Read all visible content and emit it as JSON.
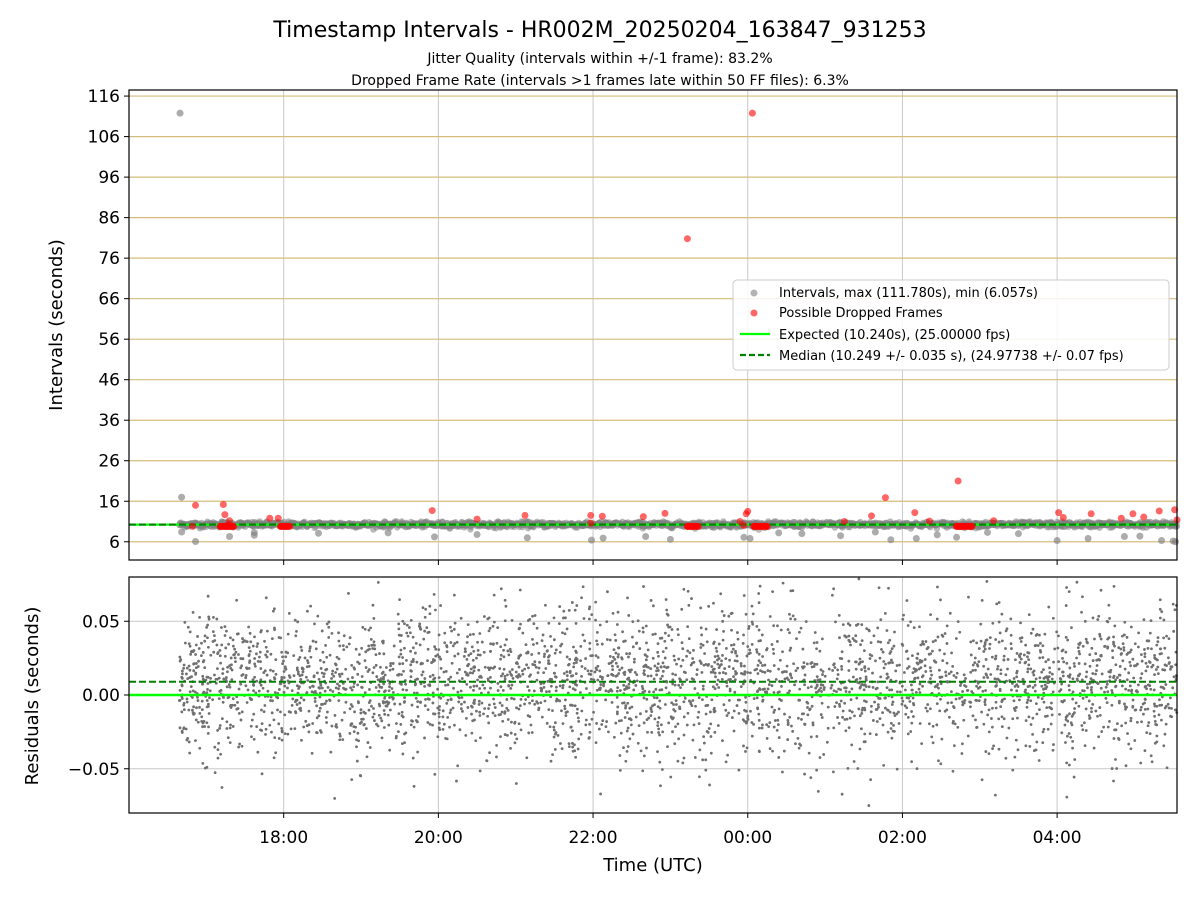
{
  "title": "Timestamp Intervals - HR002M_20250204_163847_931253",
  "subtitle_1": "Jitter Quality (intervals within +/-1 frame): 83.2%",
  "subtitle_2": "Dropped Frame Rate (intervals >1 frames late within 50 FF files): 6.3%",
  "colors": {
    "intervals": "#808080",
    "dropped": "#ff0000",
    "expected": "#00ff00",
    "median": "#008000",
    "hgrid_top": "#d4bd7a",
    "vgrid": "#c8c8c8"
  },
  "chart_data": [
    {
      "type": "scatter",
      "ylabel": "Intervals (seconds)",
      "ylim": [
        1.5,
        117.5
      ],
      "xlim_hours": [
        16.0,
        29.55
      ],
      "yticks": [
        6,
        16,
        26,
        36,
        46,
        56,
        66,
        76,
        86,
        96,
        106,
        116
      ],
      "horizontal_grid": true,
      "vertical_grid": true,
      "legend_position": "center-right",
      "legend": {
        "intervals": "Intervals, max (111.780s), min (6.057s)",
        "dropped": "Possible Dropped Frames",
        "expected": "Expected (10.240s), (25.00000 fps)",
        "median": "Median (10.249 +/- 0.035 s), (24.97738 +/- 0.07 fps)"
      },
      "expected_y": 10.24,
      "median_y": 10.249,
      "intervals_band": {
        "t_start": 16.65,
        "t_end": 29.55,
        "y_min": 9.0,
        "y_max": 11.0
      },
      "intervals_outliers": [
        [
          16.66,
          111.78
        ],
        [
          16.68,
          17.0
        ],
        [
          16.68,
          8.4
        ],
        [
          16.86,
          6.06
        ],
        [
          17.2,
          10.9
        ],
        [
          17.3,
          7.3
        ],
        [
          17.62,
          7.6
        ],
        [
          17.62,
          8.3
        ],
        [
          18.45,
          8.1
        ],
        [
          19.35,
          8.2
        ],
        [
          19.95,
          7.2
        ],
        [
          20.5,
          7.8
        ],
        [
          21.15,
          7.0
        ],
        [
          21.98,
          6.4
        ],
        [
          22.13,
          6.9
        ],
        [
          22.68,
          7.3
        ],
        [
          23.0,
          6.6
        ],
        [
          23.95,
          7.1
        ],
        [
          24.03,
          6.8
        ],
        [
          24.4,
          8.2
        ],
        [
          24.7,
          8.0
        ],
        [
          25.2,
          7.5
        ],
        [
          25.65,
          8.4
        ],
        [
          25.85,
          6.5
        ],
        [
          26.18,
          6.8
        ],
        [
          26.45,
          7.7
        ],
        [
          26.7,
          7.1
        ],
        [
          27.1,
          8.3
        ],
        [
          27.5,
          8.0
        ],
        [
          28.0,
          6.3
        ],
        [
          28.4,
          6.8
        ],
        [
          28.87,
          7.3
        ],
        [
          29.07,
          7.4
        ],
        [
          29.35,
          6.3
        ],
        [
          29.53,
          6.0
        ],
        [
          29.5,
          6.2
        ]
      ],
      "dropped_points": [
        [
          16.82,
          9.8
        ],
        [
          16.86,
          15.0
        ],
        [
          17.22,
          15.2
        ],
        [
          17.24,
          12.7
        ],
        [
          17.3,
          11.2
        ],
        [
          17.28,
          10.2
        ],
        [
          17.18,
          9.8
        ],
        [
          17.35,
          9.8
        ],
        [
          17.82,
          11.8
        ],
        [
          17.93,
          11.8
        ],
        [
          17.96,
          9.8
        ],
        [
          18.08,
          9.8
        ],
        [
          19.92,
          13.7
        ],
        [
          20.5,
          11.6
        ],
        [
          21.12,
          12.5
        ],
        [
          21.97,
          12.5
        ],
        [
          21.97,
          10.6
        ],
        [
          22.12,
          12.3
        ],
        [
          22.65,
          12.2
        ],
        [
          22.93,
          13.0
        ],
        [
          23.22,
          80.8
        ],
        [
          23.22,
          9.8
        ],
        [
          23.36,
          9.8
        ],
        [
          23.9,
          11.0
        ],
        [
          23.95,
          10.0
        ],
        [
          23.98,
          12.9
        ],
        [
          24.0,
          13.5
        ],
        [
          24.06,
          111.78
        ],
        [
          24.08,
          9.8
        ],
        [
          24.25,
          9.8
        ],
        [
          25.25,
          11.0
        ],
        [
          25.6,
          12.4
        ],
        [
          25.78,
          16.9
        ],
        [
          26.16,
          13.2
        ],
        [
          26.35,
          11.1
        ],
        [
          26.72,
          21.0
        ],
        [
          26.7,
          9.8
        ],
        [
          26.9,
          9.8
        ],
        [
          27.18,
          11.2
        ],
        [
          28.02,
          13.2
        ],
        [
          28.08,
          12.0
        ],
        [
          28.44,
          12.9
        ],
        [
          28.83,
          11.8
        ],
        [
          28.98,
          12.9
        ],
        [
          29.12,
          12.1
        ],
        [
          29.32,
          13.6
        ],
        [
          29.52,
          13.9
        ],
        [
          29.55,
          11.4
        ]
      ]
    },
    {
      "type": "scatter",
      "xlabel": "Time (UTC)",
      "ylabel": "Residuals (seconds)",
      "ylim": [
        -0.08,
        0.08
      ],
      "yticks": [
        0.05,
        0.0,
        -0.05
      ],
      "ytick_labels": [
        "0.05",
        "0.00",
        "−0.05"
      ],
      "xticks_hours": [
        18,
        20,
        22,
        24,
        26,
        28
      ],
      "xtick_labels": [
        "18:00",
        "20:00",
        "22:00",
        "00:00",
        "02:00",
        "04:00"
      ],
      "expected_y": 0.0,
      "median_y": 0.009,
      "residuals_cloud": {
        "t_start": 16.65,
        "t_end": 29.55,
        "y_center": 0.008,
        "spread": 0.025,
        "y_min": -0.075,
        "y_max": 0.08
      }
    }
  ]
}
